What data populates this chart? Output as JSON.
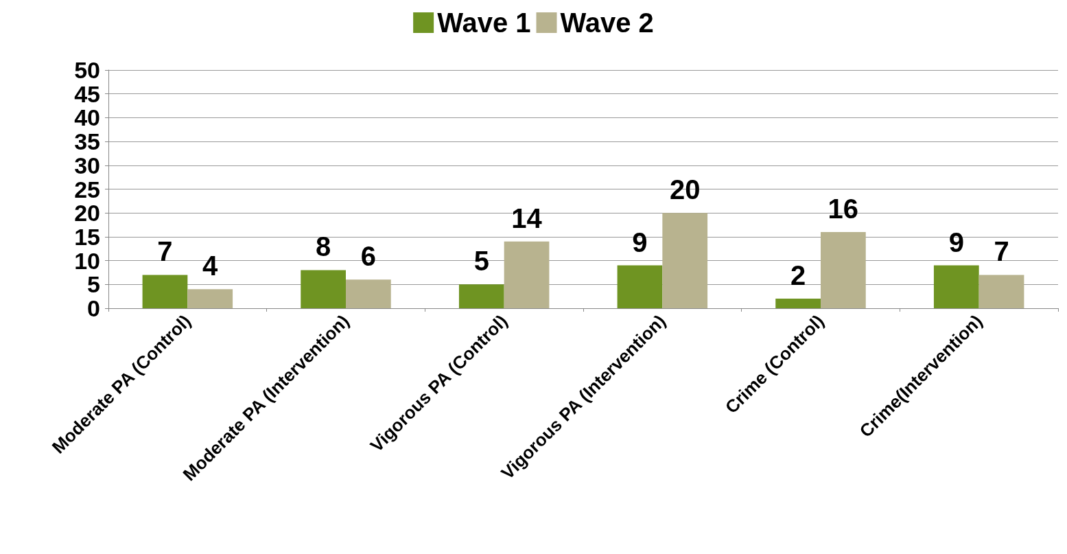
{
  "chart_data": {
    "type": "bar",
    "categories": [
      "Moderate PA (Control)",
      "Moderate PA (Intervention)",
      "Vigorous PA (Control)",
      "Vigorous PA (Intervention)",
      "Crime (Control)",
      "Crime(Intervention)"
    ],
    "series": [
      {
        "name": "Wave 1",
        "color": "#6f9422",
        "values": [
          7,
          8,
          5,
          9,
          2,
          9
        ]
      },
      {
        "name": "Wave 2",
        "color": "#b8b38f",
        "values": [
          4,
          6,
          14,
          20,
          16,
          7
        ]
      }
    ],
    "ylim": [
      0,
      50
    ],
    "yticks": [
      0,
      5,
      10,
      15,
      20,
      25,
      30,
      35,
      40,
      45,
      50
    ],
    "grid": "y",
    "legend": "top",
    "data_labels": true
  }
}
